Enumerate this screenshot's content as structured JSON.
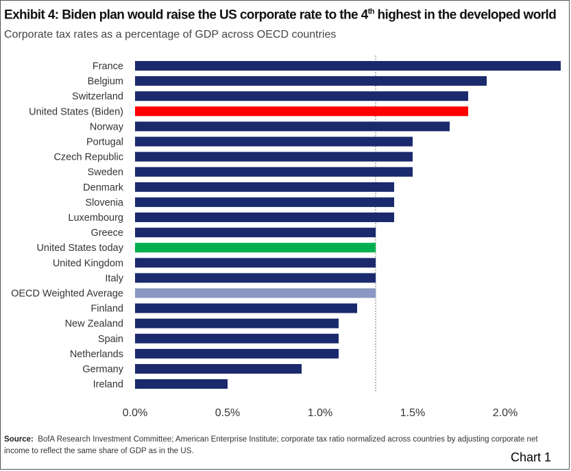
{
  "title_main": "Exhibit 4: Biden plan would raise the US corporate rate to the 4",
  "title_sup": "th",
  "title_end": " highest in the developed world",
  "subtitle": "Corporate tax rates as a percentage of GDP across OECD countries",
  "source_label": "Source:",
  "source_text": "BofA Research Investment Committee; American Enterprise Institute; corporate tax ratio normalized across countries by adjusting corporate net income to reflect the same share of GDP as in the US.",
  "chart_label": "Chart 1",
  "colors": {
    "default_bar": "#1a2a6c",
    "us_biden": "#ff0000",
    "us_today": "#00b050",
    "oecd_average": "#8a97c2",
    "reference_line": "#888888"
  },
  "chart_data": {
    "type": "bar",
    "orientation": "horizontal",
    "categories": [
      "France",
      "Belgium",
      "Switzerland",
      "United States (Biden)",
      "Norway",
      "Portugal",
      "Czech Republic",
      "Sweden",
      "Denmark",
      "Slovenia",
      "Luxembourg",
      "Greece",
      "United States today",
      "United Kingdom",
      "Italy",
      "OECD Weighted Average",
      "Finland",
      "New Zealand",
      "Spain",
      "Netherlands",
      "Germany",
      "Ireland"
    ],
    "values": [
      2.3,
      1.9,
      1.8,
      1.8,
      1.7,
      1.5,
      1.5,
      1.5,
      1.4,
      1.4,
      1.4,
      1.3,
      1.3,
      1.3,
      1.3,
      1.3,
      1.2,
      1.1,
      1.1,
      1.1,
      0.9,
      0.5
    ],
    "highlight": {
      "United States (Biden)": "us_biden",
      "United States today": "us_today",
      "OECD Weighted Average": "oecd_average"
    },
    "x_ticks": [
      "0.0%",
      "0.5%",
      "1.0%",
      "1.5%",
      "2.0%"
    ],
    "x_tick_values": [
      0,
      0.5,
      1.0,
      1.5,
      2.0
    ],
    "xlim": [
      0,
      2.3
    ],
    "reference_line_value": 1.3,
    "xlabel": "",
    "ylabel": "",
    "grid": false,
    "legend": "none"
  }
}
